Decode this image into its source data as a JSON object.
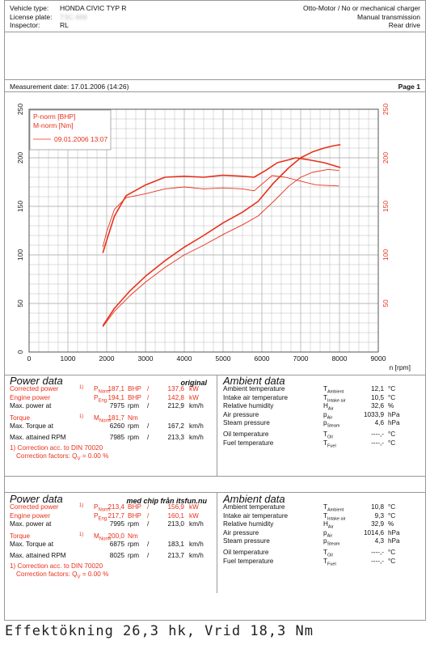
{
  "header": {
    "vehicle_type_label": "Vehicle type:",
    "vehicle_type": "HONDA CIVIC TYP R",
    "license_label": "License plate:",
    "license_plate": "TSC 668",
    "inspector_label": "Inspector:",
    "inspector": "RL",
    "engine": "Otto-Motor / No or mechanical charger",
    "transmission": "Manual transmission",
    "drive": "Rear drive",
    "measurement_date": "Measurement date: 17.01.2006 (14:26)",
    "page": "Page 1"
  },
  "chart_data": {
    "type": "line",
    "xlabel": "n [rpm]",
    "xlim": [
      0,
      9000
    ],
    "ylim": [
      0,
      250
    ],
    "x_ticks": [
      "0",
      "1000",
      "2000",
      "3000",
      "4000",
      "5000",
      "6000",
      "7000",
      "8000",
      "9000"
    ],
    "y_ticks_left": [
      "0",
      "50",
      "100",
      "150",
      "200",
      "250"
    ],
    "y_ticks_right": [
      "50",
      "100",
      "150",
      "200",
      "250"
    ],
    "legend": [
      "P-norm [BHP]",
      "M-norm [Nm]",
      "09.01.2006 13:07"
    ],
    "grid": true,
    "series": [
      {
        "name": "P-norm [BHP]",
        "x": [
          1900,
          2200,
          2600,
          3000,
          3500,
          4000,
          4500,
          5000,
          5500,
          5900,
          6300,
          6700,
          7000,
          7300,
          7600,
          7800,
          7995,
          8025
        ],
        "values": [
          27,
          45,
          63,
          78,
          94,
          108,
          120,
          133,
          144,
          155,
          174,
          190,
          200,
          206,
          210,
          212,
          213.4,
          213
        ]
      },
      {
        "name": "M-norm [Nm]",
        "x": [
          1900,
          2000,
          2200,
          2500,
          3000,
          3500,
          4000,
          4500,
          5000,
          5500,
          5800,
          6100,
          6400,
          6700,
          6875,
          7200,
          7600,
          8025
        ],
        "values": [
          102,
          115,
          140,
          161,
          172,
          180,
          181,
          180,
          182,
          181,
          180,
          187,
          195,
          198,
          200,
          198,
          195,
          190
        ]
      },
      {
        "name": "09.01.2006 13:07 P",
        "x": [
          1900,
          2200,
          2600,
          3000,
          3500,
          4000,
          4500,
          5000,
          5500,
          5900,
          6300,
          6700,
          7000,
          7300,
          7700,
          7985
        ],
        "values": [
          26,
          42,
          58,
          72,
          87,
          100,
          110,
          121,
          131,
          140,
          155,
          171,
          180,
          185,
          188,
          187
        ]
      },
      {
        "name": "09.01.2006 13:07 M",
        "x": [
          1900,
          2000,
          2200,
          2500,
          3000,
          3500,
          4000,
          4500,
          5000,
          5500,
          5800,
          6260,
          6600,
          7000,
          7400,
          7985
        ],
        "values": [
          108,
          124,
          147,
          159,
          163,
          168,
          170,
          168,
          169,
          168,
          166,
          181.7,
          180,
          176,
          172,
          171
        ]
      }
    ]
  },
  "power1": {
    "title": "Power data",
    "subtitle": "original",
    "rows": [
      {
        "label": "Corrected power",
        "sup": "1)",
        "sym": "P",
        "sub": "Norm",
        "v1": "187,1",
        "u1": "BHP",
        "sep": "/",
        "v2": "137,6",
        "u2": "kW",
        "red": true
      },
      {
        "label": "Engine power",
        "sup": "",
        "sym": "P",
        "sub": "Eng.",
        "v1": "194,1",
        "u1": "BHP",
        "sep": "/",
        "v2": "142,8",
        "u2": "kW",
        "red": true
      },
      {
        "label": "Max. power at",
        "sup": "",
        "sym": "",
        "sub": "",
        "v1": "7975",
        "u1": "rpm",
        "sep": "/",
        "v2": "212,9",
        "u2": "km/h",
        "red": false
      },
      {
        "label": "Torque",
        "sup": "1)",
        "sym": "M",
        "sub": "Norm",
        "v1": "181,7",
        "u1": "Nm",
        "sep": "",
        "v2": "",
        "u2": "",
        "red": true
      },
      {
        "label": "Max. Torque at",
        "sup": "",
        "sym": "",
        "sub": "",
        "v1": "6260",
        "u1": "rpm",
        "sep": "/",
        "v2": "167,2",
        "u2": "km/h",
        "red": false
      },
      {
        "label": "Max. attained RPM",
        "sup": "",
        "sym": "",
        "sub": "",
        "v1": "7985",
        "u1": "rpm",
        "sep": "/",
        "v2": "213,3",
        "u2": "km/h",
        "red": false
      }
    ],
    "note1": "1) Correction acc. to DIN 70020",
    "note2": "Correction factors: Q",
    "note2_sub": "V",
    "note2_val": " =   0.00 %"
  },
  "ambient1": {
    "title": "Ambient data",
    "rows": [
      {
        "label": "Ambient temperature",
        "sym": "T",
        "sub": "Ambient",
        "val": "12,1",
        "unit": "°C"
      },
      {
        "label": "Intake air temperature",
        "sym": "T",
        "sub": "Intake air",
        "val": "10,5",
        "unit": "°C"
      },
      {
        "label": "Relative humidity",
        "sym": "H",
        "sub": "Air",
        "val": "32,6",
        "unit": "%"
      },
      {
        "label": "Air pressure",
        "sym": "p",
        "sub": "Air",
        "val": "1033,9",
        "unit": "hPa"
      },
      {
        "label": "Steam pressure",
        "sym": "p",
        "sub": "Steam",
        "val": "4,6",
        "unit": "hPa"
      },
      {
        "label": "Oil temperature",
        "sym": "T",
        "sub": "Oil",
        "val": "----,-",
        "unit": "°C"
      },
      {
        "label": "Fuel temperature",
        "sym": "T",
        "sub": "Fuel",
        "val": "----,-",
        "unit": "°C"
      }
    ]
  },
  "power2": {
    "title": "Power data",
    "subtitle": "med chip från itsfun.nu",
    "rows": [
      {
        "label": "Corrected power",
        "sup": "1)",
        "sym": "P",
        "sub": "Norm",
        "v1": "213,4",
        "u1": "BHP",
        "sep": "/",
        "v2": "156,9",
        "u2": "kW",
        "red": true
      },
      {
        "label": "Engine power",
        "sup": "",
        "sym": "P",
        "sub": "Eng.",
        "v1": "217,7",
        "u1": "BHP",
        "sep": "/",
        "v2": "160,1",
        "u2": "kW",
        "red": true
      },
      {
        "label": "Max. power at",
        "sup": "",
        "sym": "",
        "sub": "",
        "v1": "7995",
        "u1": "rpm",
        "sep": "/",
        "v2": "213,0",
        "u2": "km/h",
        "red": false
      },
      {
        "label": "Torque",
        "sup": "1)",
        "sym": "M",
        "sub": "Norm",
        "v1": "200,0",
        "u1": "Nm",
        "sep": "",
        "v2": "",
        "u2": "",
        "red": true
      },
      {
        "label": "Max. Torque at",
        "sup": "",
        "sym": "",
        "sub": "",
        "v1": "6875",
        "u1": "rpm",
        "sep": "/",
        "v2": "183,1",
        "u2": "km/h",
        "red": false
      },
      {
        "label": "Max. attained RPM",
        "sup": "",
        "sym": "",
        "sub": "",
        "v1": "8025",
        "u1": "rpm",
        "sep": "/",
        "v2": "213,7",
        "u2": "km/h",
        "red": false
      }
    ],
    "note1": "1) Correction acc. to DIN 70020",
    "note2": "Correction factors: Q",
    "note2_sub": "V",
    "note2_val": " =   0.00 %"
  },
  "ambient2": {
    "title": "Ambient data",
    "rows": [
      {
        "label": "Ambient temperature",
        "sym": "T",
        "sub": "Ambient",
        "val": "10,8",
        "unit": "°C"
      },
      {
        "label": "Intake air temperature",
        "sym": "T",
        "sub": "Intake air",
        "val": "9,3",
        "unit": "°C"
      },
      {
        "label": "Relative humidity",
        "sym": "H",
        "sub": "Air",
        "val": "32,9",
        "unit": "%"
      },
      {
        "label": "Air pressure",
        "sym": "p",
        "sub": "Air",
        "val": "1014,6",
        "unit": "hPa"
      },
      {
        "label": "Steam pressure",
        "sym": "p",
        "sub": "Steam",
        "val": "4,3",
        "unit": "hPa"
      },
      {
        "label": "Oil temperature",
        "sym": "T",
        "sub": "Oil",
        "val": "----,-",
        "unit": "°C"
      },
      {
        "label": "Fuel temperature",
        "sym": "T",
        "sub": "Fuel",
        "val": "----,-",
        "unit": "°C"
      }
    ]
  },
  "caption": "Effektökning 26,3 hk, Vrid 18,3 Nm",
  "colors": {
    "red": "#e8301a",
    "grid": "#b9b9b9"
  }
}
